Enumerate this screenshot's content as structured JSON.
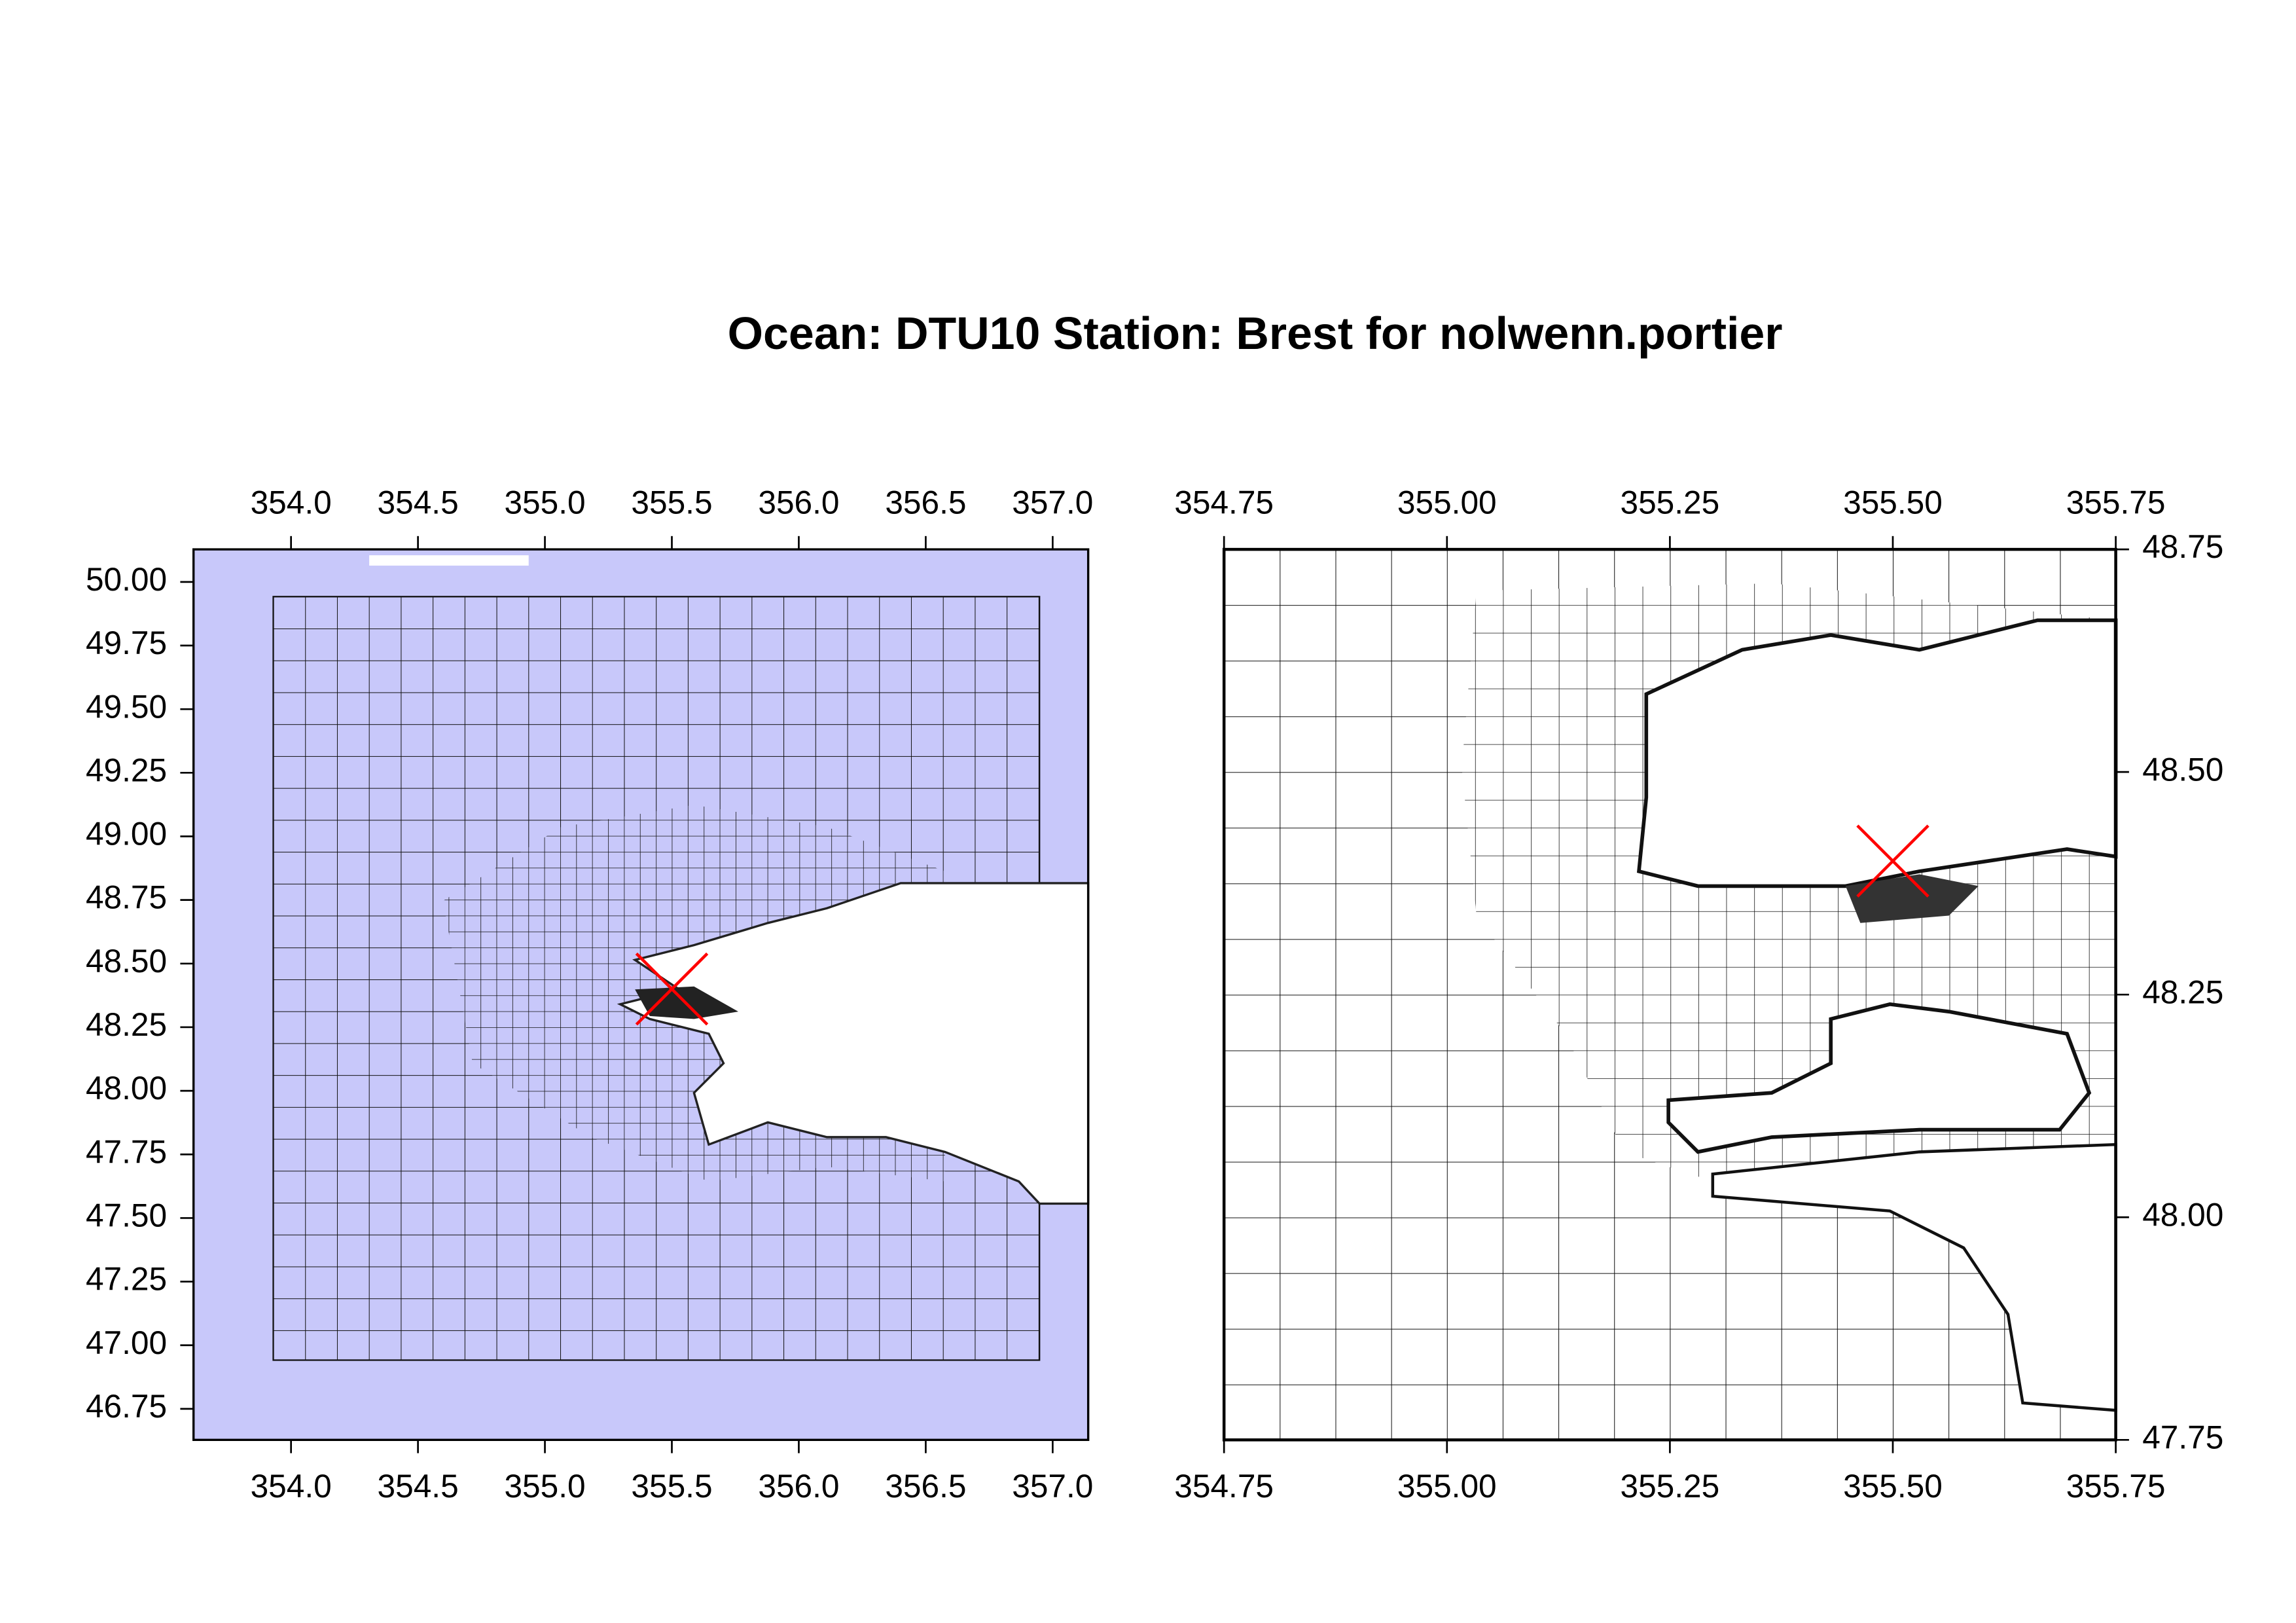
{
  "title": "Ocean: DTU10  Station: Brest  for nolwenn.portier",
  "chart_data": [
    {
      "type": "map",
      "xlim": [
        353.616,
        357.14
      ],
      "ylim": [
        46.628,
        50.128
      ],
      "xticks": [
        {
          "value": 354.0,
          "label": "354.0"
        },
        354.5,
        {
          "value": 355.0,
          "label": "355.0"
        },
        355.5,
        {
          "value": 356.0,
          "label": "356.0"
        },
        356.5,
        {
          "value": 357.0,
          "label": "357.0"
        }
      ],
      "yticks": [
        {
          "value": 50.0,
          "label": "50.00"
        },
        49.75,
        {
          "value": 49.5,
          "label": "49.50"
        },
        49.25,
        {
          "value": 49.0,
          "label": "49.00"
        },
        48.75,
        {
          "value": 48.5,
          "label": "48.50"
        },
        48.25,
        {
          "value": 48.0,
          "label": "48.00"
        },
        47.75,
        {
          "value": 47.5,
          "label": "47.50"
        },
        47.25,
        {
          "value": 47.0,
          "label": "47.00"
        },
        46.75
      ],
      "station": {
        "lon": 355.5,
        "lat": 48.4
      },
      "marker_color": "#ff0000",
      "y_axis_side": "left"
    },
    {
      "type": "map",
      "xlim": [
        354.75,
        355.75
      ],
      "ylim": [
        47.75,
        48.75
      ],
      "xticks": [
        354.75,
        {
          "value": 355.0,
          "label": "355.00"
        },
        355.25,
        {
          "value": 355.5,
          "label": "355.50"
        },
        355.75
      ],
      "yticks": [
        48.75,
        {
          "value": 48.5,
          "label": "48.50"
        },
        48.25,
        {
          "value": 48.0,
          "label": "48.00"
        },
        47.75
      ],
      "station": {
        "lon": 355.5,
        "lat": 48.4
      },
      "marker_color": "#ff0000",
      "y_axis_side": "right"
    }
  ]
}
